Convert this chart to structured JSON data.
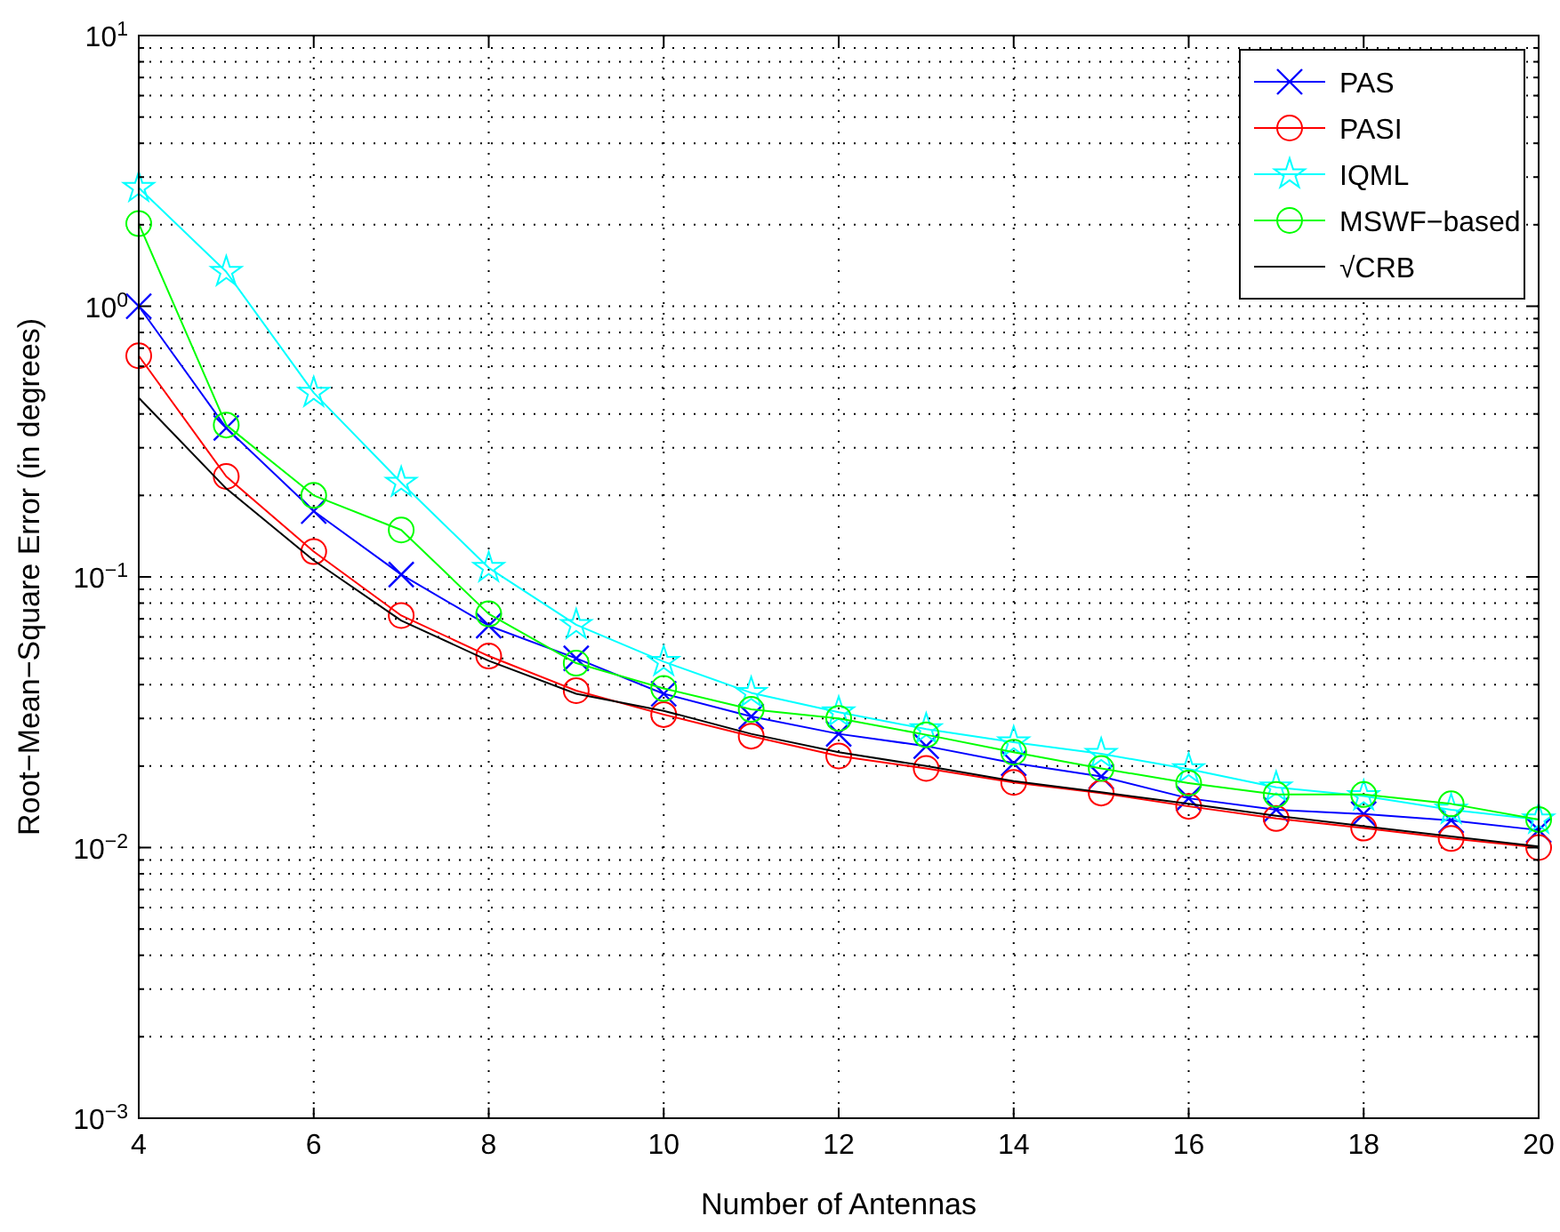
{
  "chart_data": {
    "type": "line",
    "xlabel": "Number of Antennas",
    "ylabel": "Root−Mean−Square Error (in degrees)",
    "log": "y",
    "grid": true,
    "legend": "top right",
    "x": [
      4,
      5,
      6,
      7,
      8,
      9,
      10,
      11,
      12,
      13,
      14,
      15,
      16,
      17,
      18,
      19,
      20
    ],
    "xlim": [
      4,
      20
    ],
    "xticks": [
      4,
      6,
      8,
      10,
      12,
      14,
      16,
      18,
      20
    ],
    "ylim": [
      0.001,
      10
    ],
    "yticks": [
      {
        "value": 0.001,
        "label": "10$^{−3}$"
      },
      {
        "value": 0.01,
        "label": "10$^{−2}$"
      },
      {
        "value": 0.1,
        "label": "10$^{−1}$"
      },
      {
        "value": 1,
        "label": "10$^{0}$"
      },
      {
        "value": 10,
        "label": "10$^{1}$"
      }
    ],
    "series": [
      {
        "name": "PAS",
        "color": "#0000ff",
        "marker": "cross",
        "values": [
          1.0,
          0.355,
          0.175,
          0.102,
          0.066,
          0.05,
          0.037,
          0.0305,
          0.0263,
          0.0237,
          0.0205,
          0.0183,
          0.0152,
          0.0138,
          0.0133,
          0.0126,
          0.0116
        ]
      },
      {
        "name": "PASI",
        "color": "#ff0000",
        "marker": "circle",
        "values": [
          0.656,
          0.235,
          0.124,
          0.072,
          0.051,
          0.038,
          0.031,
          0.0258,
          0.0218,
          0.0196,
          0.0174,
          0.0159,
          0.0142,
          0.0128,
          0.0118,
          0.0108,
          0.01
        ]
      },
      {
        "name": "IQML",
        "color": "#00ffff",
        "marker": "star",
        "values": [
          2.74,
          1.34,
          0.479,
          0.223,
          0.108,
          0.0665,
          0.0486,
          0.0373,
          0.0316,
          0.0274,
          0.0245,
          0.0222,
          0.0195,
          0.0167,
          0.0155,
          0.0138,
          0.0127
        ]
      },
      {
        "name": "MSWF−based",
        "color": "#00ff00",
        "marker": "circle",
        "values": [
          2.02,
          0.364,
          0.2,
          0.149,
          0.073,
          0.048,
          0.0387,
          0.0324,
          0.03,
          0.0261,
          0.0225,
          0.0196,
          0.0173,
          0.0157,
          0.0157,
          0.0145,
          0.0127
        ]
      },
      {
        "name": "√CRB",
        "color": "#000000",
        "marker": "none",
        "values": [
          0.459,
          0.212,
          0.115,
          0.069,
          0.049,
          0.037,
          0.032,
          0.0263,
          0.0225,
          0.02,
          0.0176,
          0.016,
          0.0145,
          0.0131,
          0.012,
          0.011,
          0.0101
        ]
      }
    ]
  }
}
